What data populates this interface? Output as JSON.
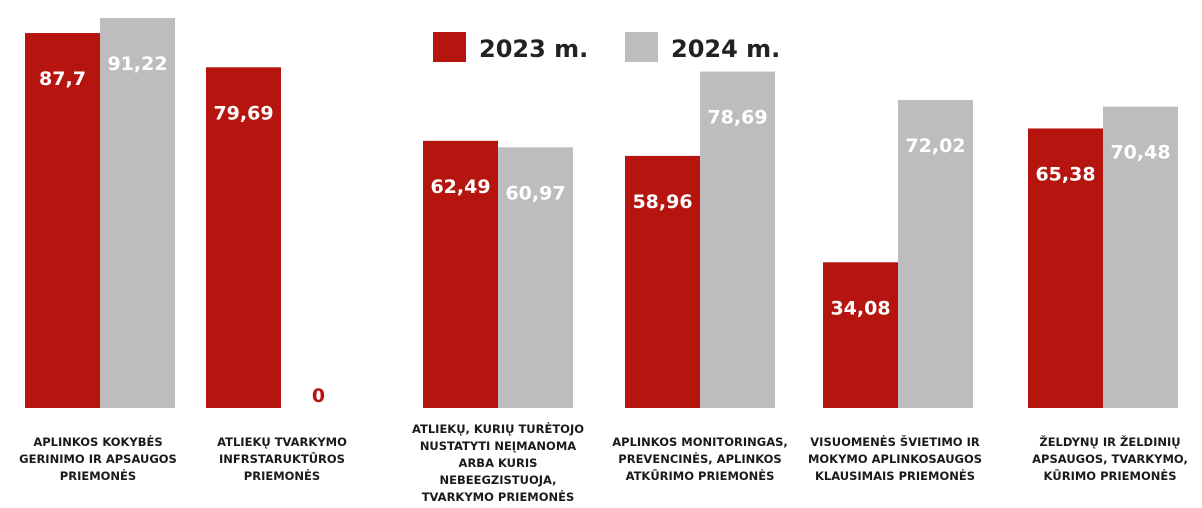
{
  "chart_data": {
    "type": "bar",
    "title": "",
    "xlabel": "",
    "ylabel": "",
    "ylim": [
      0,
      100
    ],
    "grid": false,
    "legend_position": "top-center",
    "categories": [
      [
        "APLINKOS KOKYBĖS",
        "GERINIMO IR APSAUGOS",
        "PRIEMONĖS"
      ],
      [
        "ATLIEKŲ TVARKYMO",
        "INFRSTARUKTŪROS",
        "PRIEMONĖS"
      ],
      [
        "ATLIEKŲ, KURIŲ TURĖTOJO",
        "NUSTATYTI NEĮMANOMA",
        "ARBA KURIS",
        "NEBEEGZISTUOJA,",
        "TVARKYMO PRIEMONĖS"
      ],
      [
        "APLINKOS MONITORINGAS,",
        "PREVENCINĖS, APLINKOS",
        "ATKŪRIMO PRIEMONĖS"
      ],
      [
        "VISUOMENĖS ŠVIETIMO IR",
        "MOKYMO APLINKOSAUGOS",
        "KLAUSIMAIS PRIEMONĖS"
      ],
      [
        "ŽELDYNŲ IR ŽELDINIŲ",
        "APSAUGOS, TVARKYMO,",
        "KŪRIMO PRIEMONĖS"
      ]
    ],
    "series": [
      {
        "name": "2023 m.",
        "color": "#b5140f",
        "values": [
          87.7,
          79.69,
          62.49,
          58.96,
          34.08,
          65.38
        ],
        "labels": [
          "87,7",
          "79,69",
          "62,49",
          "58,96",
          "34,08",
          "65,38"
        ]
      },
      {
        "name": "2024 m.",
        "color": "#bdbdbd",
        "values": [
          91.22,
          0,
          60.97,
          78.69,
          72.02,
          70.48
        ],
        "labels": [
          "91,22",
          "0",
          "60,97",
          "78,69",
          "72,02",
          "70,48"
        ]
      }
    ]
  }
}
